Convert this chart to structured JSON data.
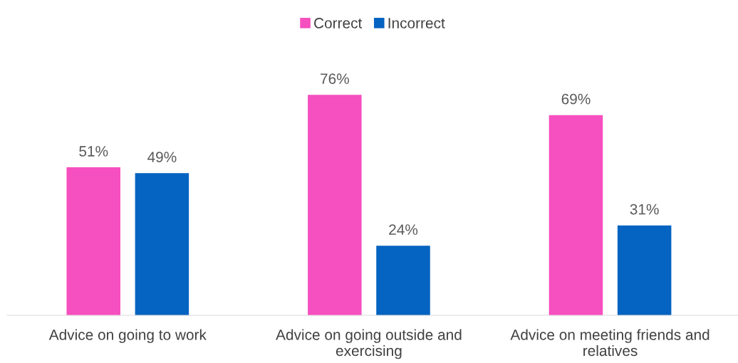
{
  "chart_data": {
    "type": "bar",
    "categories": [
      "Advice on going to work",
      "Advice on going outside and\nexercising",
      "Advice on meeting friends and\nrelatives"
    ],
    "series": [
      {
        "name": "Correct",
        "color": "#f64fbf",
        "values": [
          51,
          76,
          69
        ],
        "value_labels": [
          "51%",
          "76%",
          "69%"
        ]
      },
      {
        "name": "Incorrect",
        "color": "#0563c1",
        "values": [
          49,
          24,
          31
        ],
        "value_labels": [
          "49%",
          "24%",
          "31%"
        ]
      }
    ],
    "legend": "top"
  }
}
